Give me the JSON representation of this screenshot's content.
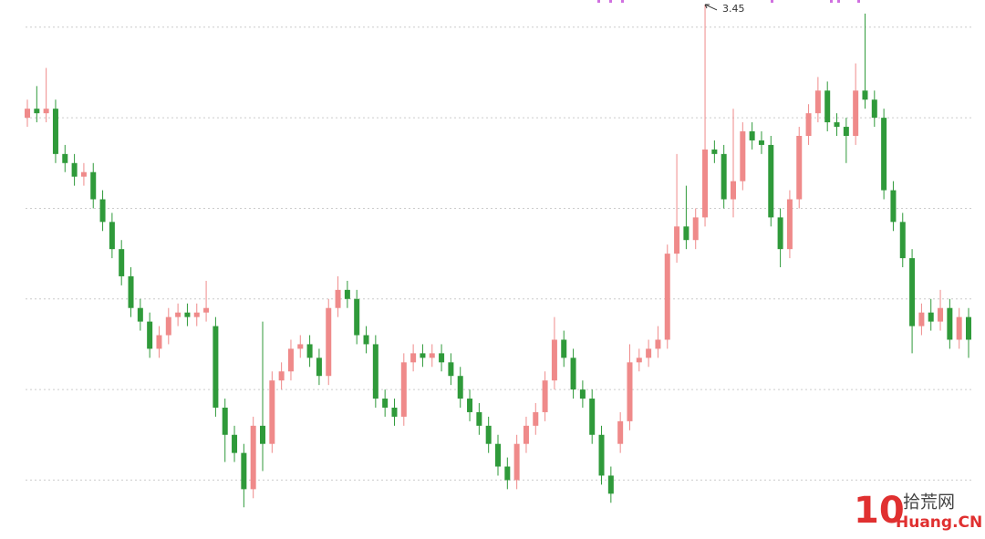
{
  "chart_data": {
    "type": "candlestick",
    "open": [
      3.2,
      3.22,
      3.21,
      3.22,
      3.12,
      3.1,
      3.07,
      3.08,
      3.02,
      2.97,
      2.91,
      2.85,
      2.78,
      2.75,
      2.69,
      2.72,
      2.76,
      2.77,
      2.76,
      2.77,
      2.74,
      2.56,
      2.5,
      2.46,
      2.38,
      2.52,
      2.48,
      2.62,
      2.64,
      2.69,
      2.7,
      2.67,
      2.63,
      2.78,
      2.82,
      2.8,
      2.72,
      2.7,
      2.58,
      2.56,
      2.54,
      2.66,
      2.68,
      2.67,
      2.68,
      2.66,
      2.63,
      2.58,
      2.55,
      2.52,
      2.48,
      2.43,
      2.4,
      2.48,
      2.52,
      2.55,
      2.62,
      2.71,
      2.67,
      2.6,
      2.58,
      2.5,
      2.41,
      2.48,
      2.53,
      2.66,
      2.67,
      2.69,
      2.71,
      2.9,
      2.96,
      2.93,
      2.98,
      3.13,
      3.12,
      3.02,
      3.06,
      3.17,
      3.15,
      3.14,
      2.98,
      2.91,
      3.02,
      3.16,
      3.21,
      3.26,
      3.19,
      3.18,
      3.16,
      3.26,
      3.24,
      3.2,
      3.04,
      2.97,
      2.89,
      2.74,
      2.77,
      2.75,
      2.78,
      2.71,
      2.76
    ],
    "high": [
      3.24,
      3.27,
      3.31,
      3.24,
      3.14,
      3.12,
      3.1,
      3.1,
      3.04,
      2.99,
      2.93,
      2.87,
      2.8,
      2.77,
      2.74,
      2.78,
      2.79,
      2.79,
      2.79,
      2.84,
      2.76,
      2.58,
      2.52,
      2.48,
      2.54,
      2.75,
      2.64,
      2.66,
      2.71,
      2.72,
      2.72,
      2.69,
      2.8,
      2.85,
      2.84,
      2.82,
      2.74,
      2.72,
      2.6,
      2.58,
      2.68,
      2.7,
      2.7,
      2.7,
      2.7,
      2.68,
      2.65,
      2.6,
      2.57,
      2.54,
      2.5,
      2.45,
      2.5,
      2.54,
      2.57,
      2.64,
      2.76,
      2.73,
      2.69,
      2.62,
      2.6,
      2.52,
      2.43,
      2.55,
      2.7,
      2.69,
      2.71,
      2.74,
      2.92,
      3.12,
      3.05,
      3.0,
      3.45,
      3.15,
      3.14,
      3.22,
      3.19,
      3.19,
      3.17,
      3.16,
      3.0,
      3.04,
      3.18,
      3.23,
      3.29,
      3.28,
      3.21,
      3.2,
      3.32,
      3.43,
      3.26,
      3.22,
      3.06,
      2.99,
      2.91,
      2.79,
      2.8,
      2.82,
      2.8,
      2.78,
      2.78
    ],
    "low": [
      3.18,
      3.19,
      3.19,
      3.1,
      3.08,
      3.05,
      3.05,
      3.0,
      2.95,
      2.89,
      2.83,
      2.76,
      2.73,
      2.67,
      2.67,
      2.7,
      2.74,
      2.74,
      2.74,
      2.75,
      2.54,
      2.44,
      2.44,
      2.34,
      2.36,
      2.42,
      2.46,
      2.6,
      2.62,
      2.67,
      2.65,
      2.61,
      2.61,
      2.76,
      2.78,
      2.7,
      2.68,
      2.56,
      2.54,
      2.52,
      2.52,
      2.64,
      2.65,
      2.65,
      2.64,
      2.61,
      2.56,
      2.53,
      2.5,
      2.46,
      2.41,
      2.38,
      2.38,
      2.46,
      2.5,
      2.53,
      2.6,
      2.65,
      2.58,
      2.56,
      2.48,
      2.39,
      2.35,
      2.46,
      2.51,
      2.64,
      2.65,
      2.67,
      2.69,
      2.88,
      2.91,
      2.91,
      2.96,
      3.1,
      3.0,
      2.98,
      3.04,
      3.13,
      3.12,
      2.96,
      2.87,
      2.89,
      3.0,
      3.14,
      3.19,
      3.17,
      3.16,
      3.1,
      3.14,
      3.22,
      3.18,
      3.02,
      2.95,
      2.87,
      2.68,
      2.72,
      2.73,
      2.73,
      2.69,
      2.69,
      2.67
    ],
    "close": [
      3.22,
      3.21,
      3.22,
      3.12,
      3.1,
      3.07,
      3.08,
      3.02,
      2.97,
      2.91,
      2.85,
      2.78,
      2.75,
      2.69,
      2.72,
      2.76,
      2.77,
      2.76,
      2.77,
      2.78,
      2.56,
      2.5,
      2.46,
      2.38,
      2.52,
      2.48,
      2.62,
      2.64,
      2.69,
      2.7,
      2.67,
      2.63,
      2.78,
      2.82,
      2.8,
      2.72,
      2.7,
      2.58,
      2.56,
      2.54,
      2.66,
      2.68,
      2.67,
      2.68,
      2.66,
      2.63,
      2.58,
      2.55,
      2.52,
      2.48,
      2.43,
      2.4,
      2.48,
      2.52,
      2.55,
      2.62,
      2.71,
      2.67,
      2.6,
      2.58,
      2.5,
      2.41,
      2.37,
      2.53,
      2.66,
      2.67,
      2.69,
      2.71,
      2.9,
      2.96,
      2.93,
      2.98,
      3.13,
      3.12,
      3.02,
      3.06,
      3.17,
      3.15,
      3.14,
      2.98,
      2.91,
      3.02,
      3.16,
      3.21,
      3.26,
      3.19,
      3.18,
      3.16,
      3.26,
      3.24,
      3.2,
      3.04,
      2.97,
      2.89,
      2.74,
      2.77,
      2.75,
      2.78,
      2.71,
      2.76,
      2.71
    ],
    "up_color": "#ef8a8a",
    "down_color": "#2f9a3a",
    "ylim": [
      2.27,
      3.46
    ],
    "yticks": [
      2.4,
      2.6,
      2.8,
      3.0,
      3.2,
      3.4
    ],
    "grid": true,
    "high_label": 3.45,
    "watermark": {
      "mark": "10",
      "name": "拾荒网",
      "site": "Huang.CN"
    }
  }
}
